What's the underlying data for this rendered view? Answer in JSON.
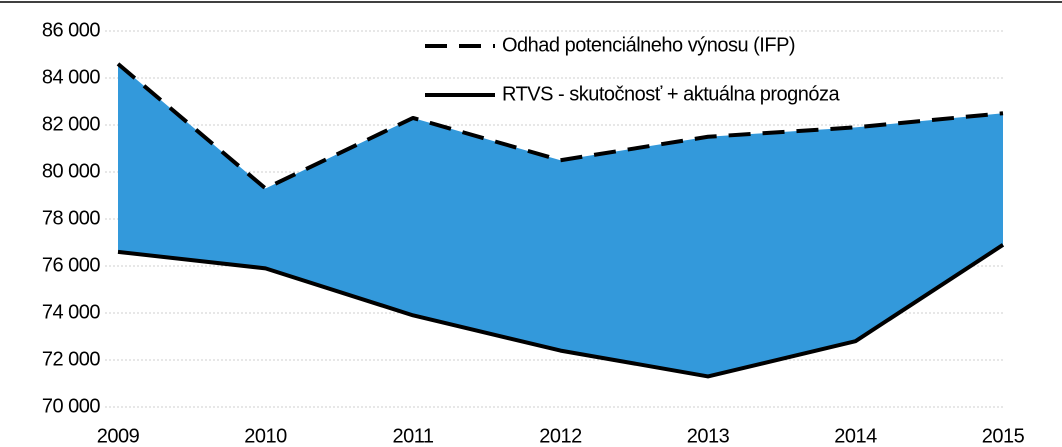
{
  "chart_data": {
    "type": "line",
    "categories": [
      "2009",
      "2010",
      "2011",
      "2012",
      "2013",
      "2014",
      "2015"
    ],
    "series": [
      {
        "name": "Odhad potenciálneho výnosu (IFP)",
        "color": "#000000",
        "dash": true,
        "values": [
          84600,
          79300,
          82300,
          80500,
          81500,
          81900,
          82500
        ]
      },
      {
        "name": "RTVS - skutočnosť + aktuálna prognóza",
        "color": "#000000",
        "dash": false,
        "values": [
          76600,
          75900,
          73900,
          72400,
          71300,
          72800,
          76900
        ]
      }
    ],
    "fill_between": "#3399db",
    "ylim": [
      70000,
      86000
    ],
    "yticks": [
      {
        "value": 70000,
        "label": "70 000"
      },
      {
        "value": 72000,
        "label": "72 000"
      },
      {
        "value": 74000,
        "label": "74 000"
      },
      {
        "value": 76000,
        "label": "76 000"
      },
      {
        "value": 78000,
        "label": "78 000"
      },
      {
        "value": 80000,
        "label": "80 000"
      },
      {
        "value": 82000,
        "label": "82 000"
      },
      {
        "value": 84000,
        "label": "84 000"
      },
      {
        "value": 86000,
        "label": "86 000"
      }
    ],
    "grid": true,
    "legend": "top"
  }
}
